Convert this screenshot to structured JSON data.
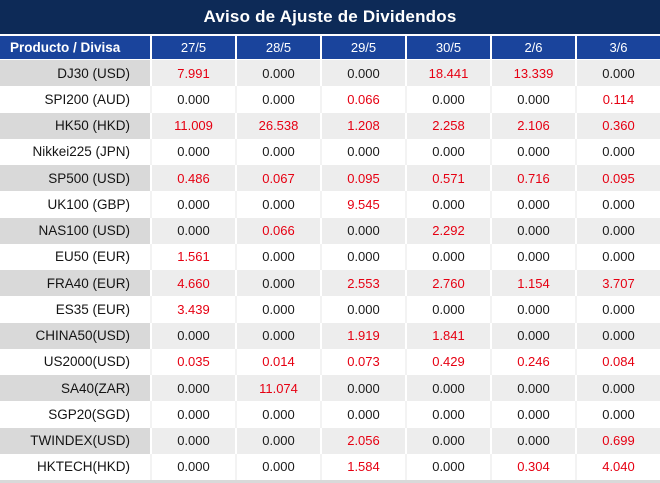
{
  "title": "Aviso de Ajuste de Dividendos",
  "colors": {
    "title_bar_bg": "#0d2a57",
    "header_row_bg": "#1a449c",
    "header_text": "#ffffff",
    "value_zero_text": "#1a1a1a",
    "value_nonzero_text": "#e60012",
    "stripe_label_bg": "#d9d9d9",
    "stripe_data_bg": "#ededed",
    "white_row_bg": "#ffffff"
  },
  "table": {
    "header": {
      "product_label": "Producto / Divisa",
      "dates": [
        "27/5",
        "28/5",
        "29/5",
        "30/5",
        "2/6",
        "3/6"
      ]
    },
    "rows": [
      {
        "product": "DJ30 (USD)",
        "values": [
          "7.991",
          "0.000",
          "0.000",
          "18.441",
          "13.339",
          "0.000"
        ]
      },
      {
        "product": "SPI200 (AUD)",
        "values": [
          "0.000",
          "0.000",
          "0.066",
          "0.000",
          "0.000",
          "0.114"
        ]
      },
      {
        "product": "HK50 (HKD)",
        "values": [
          "11.009",
          "26.538",
          "1.208",
          "2.258",
          "2.106",
          "0.360"
        ]
      },
      {
        "product": "Nikkei225 (JPN)",
        "values": [
          "0.000",
          "0.000",
          "0.000",
          "0.000",
          "0.000",
          "0.000"
        ]
      },
      {
        "product": "SP500 (USD)",
        "values": [
          "0.486",
          "0.067",
          "0.095",
          "0.571",
          "0.716",
          "0.095"
        ]
      },
      {
        "product": "UK100 (GBP)",
        "values": [
          "0.000",
          "0.000",
          "9.545",
          "0.000",
          "0.000",
          "0.000"
        ]
      },
      {
        "product": "NAS100 (USD)",
        "values": [
          "0.000",
          "0.066",
          "0.000",
          "2.292",
          "0.000",
          "0.000"
        ]
      },
      {
        "product": "EU50 (EUR)",
        "values": [
          "1.561",
          "0.000",
          "0.000",
          "0.000",
          "0.000",
          "0.000"
        ]
      },
      {
        "product": "FRA40 (EUR)",
        "values": [
          "4.660",
          "0.000",
          "2.553",
          "2.760",
          "1.154",
          "3.707"
        ]
      },
      {
        "product": "ES35 (EUR)",
        "values": [
          "3.439",
          "0.000",
          "0.000",
          "0.000",
          "0.000",
          "0.000"
        ]
      },
      {
        "product": "CHINA50(USD)",
        "values": [
          "0.000",
          "0.000",
          "1.919",
          "1.841",
          "0.000",
          "0.000"
        ]
      },
      {
        "product": "US2000(USD)",
        "values": [
          "0.035",
          "0.014",
          "0.073",
          "0.429",
          "0.246",
          "0.084"
        ]
      },
      {
        "product": "SA40(ZAR)",
        "values": [
          "0.000",
          "11.074",
          "0.000",
          "0.000",
          "0.000",
          "0.000"
        ]
      },
      {
        "product": "SGP20(SGD)",
        "values": [
          "0.000",
          "0.000",
          "0.000",
          "0.000",
          "0.000",
          "0.000"
        ]
      },
      {
        "product": "TWINDEX(USD)",
        "values": [
          "0.000",
          "0.000",
          "2.056",
          "0.000",
          "0.000",
          "0.699"
        ]
      },
      {
        "product": "HKTECH(HKD)",
        "values": [
          "0.000",
          "0.000",
          "1.584",
          "0.000",
          "0.304",
          "4.040"
        ]
      }
    ]
  }
}
